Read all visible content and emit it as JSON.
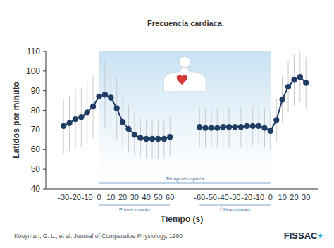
{
  "chart_data": [
    {
      "type": "line",
      "title": "Frecuencia cardiaca",
      "y_label": "Latidos por minuto",
      "x_label": "Tiempo (s)",
      "span_label": "Tiempo en apnea",
      "annotation": "Primer minuto",
      "span": [
        0,
        60
      ],
      "xlim": [
        -45,
        70
      ],
      "xticks": [
        -30,
        -20,
        -10,
        0,
        10,
        20,
        30,
        40,
        50,
        60
      ],
      "ylim": [
        40,
        110
      ],
      "yticks": [
        40,
        50,
        60,
        70,
        80,
        90,
        100,
        110
      ],
      "grid": false,
      "x": [
        -30,
        -25,
        -20,
        -15,
        -10,
        -5,
        0,
        5,
        10,
        15,
        20,
        25,
        30,
        35,
        40,
        45,
        50,
        55,
        60
      ],
      "series": [
        {
          "color": "#1f3d63",
          "marker": "circle",
          "values": [
            72,
            73.5,
            75.5,
            76.5,
            79,
            82,
            87,
            88,
            86.5,
            81,
            74,
            70.5,
            67.5,
            66,
            65.5,
            65.5,
            65.5,
            65.5,
            66.5
          ],
          "errors": [
            14,
            14,
            15,
            15,
            16,
            16,
            17,
            17,
            17,
            16,
            14,
            12,
            11,
            10,
            10,
            10,
            10,
            10,
            10
          ]
        }
      ]
    },
    {
      "type": "line",
      "annotation": "Último minuto",
      "span": [
        -60,
        0
      ],
      "xlim": [
        -75,
        40
      ],
      "xticks": [
        -60,
        -50,
        -40,
        -30,
        -20,
        -10,
        0,
        10,
        20,
        30
      ],
      "ylim": [
        40,
        110
      ],
      "tick_labels": "x",
      "grid": false,
      "x": [
        -60,
        -55,
        -50,
        -45,
        -40,
        -35,
        -30,
        -25,
        -20,
        -15,
        -10,
        -5,
        0,
        5,
        10,
        15,
        20,
        25,
        30
      ],
      "series": [
        {
          "color": "#1f3d63",
          "marker": "circle",
          "values": [
            71.5,
            71,
            71,
            71,
            71.5,
            71.5,
            71.5,
            71.5,
            72,
            72,
            72,
            71,
            69.5,
            75,
            85.5,
            92,
            95.5,
            97,
            94
          ],
          "errors": [
            10,
            10,
            10,
            10,
            10,
            10,
            10,
            10,
            10,
            10,
            10,
            10,
            10,
            11,
            12,
            13,
            13,
            13,
            13
          ]
        }
      ]
    }
  ],
  "source": "Kooyman, G. L., et al. Journal of Comparative Physiology, 1980",
  "brand": "FISSAC+"
}
